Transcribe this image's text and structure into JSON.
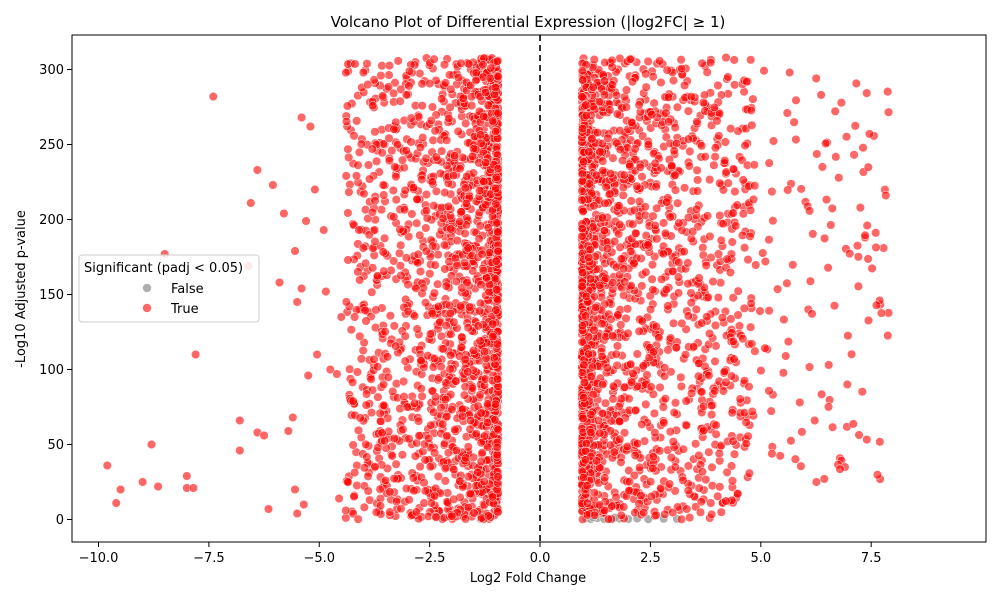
{
  "chart_data": {
    "type": "scatter",
    "title": "Volcano Plot of Differential Expression (|log2FC| ≥ 1)",
    "xlabel": "Log2 Fold Change",
    "ylabel": "-Log10 Adjusted p-value",
    "xlim": [
      -10.6,
      10.1
    ],
    "ylim": [
      -15,
      323
    ],
    "xticks": [
      -10.0,
      -7.5,
      -5.0,
      -2.5,
      0.0,
      2.5,
      5.0,
      7.5
    ],
    "xtick_labels": [
      "−10.0",
      "−7.5",
      "−5.0",
      "−2.5",
      "0.0",
      "2.5",
      "5.0",
      "7.5"
    ],
    "yticks": [
      0,
      50,
      100,
      150,
      200,
      250,
      300
    ],
    "ytick_labels": [
      "0",
      "50",
      "100",
      "150",
      "200",
      "250",
      "300"
    ],
    "vline_x": 0,
    "legend": {
      "title": "Significant (padj < 0.05)",
      "placement": "center-left",
      "entries": [
        {
          "label": "False",
          "color": "#a0a0a0"
        },
        {
          "label": "True",
          "color": "#ff0000"
        }
      ]
    },
    "grid": false,
    "series": [
      {
        "name": "False",
        "color": "#a0a0a0",
        "points": [
          [
            -1.35,
            0.5
          ],
          [
            1.05,
            0.8
          ],
          [
            1.15,
            0.3
          ],
          [
            1.3,
            0.9
          ],
          [
            1.45,
            0.4
          ],
          [
            1.6,
            0.2
          ],
          [
            1.8,
            0.6
          ],
          [
            2.0,
            0.3
          ],
          [
            2.2,
            0.7
          ],
          [
            2.45,
            0.2
          ],
          [
            2.8,
            0.5
          ],
          [
            3.1,
            0.4
          ],
          [
            1.2,
            1.5
          ],
          [
            1.7,
            1.2
          ]
        ]
      },
      {
        "name": "True",
        "color": "#ff0000",
        "points": [
          [
            -9.8,
            36
          ],
          [
            -9.6,
            11
          ],
          [
            -9.5,
            20
          ],
          [
            -9.0,
            25
          ],
          [
            -8.8,
            50
          ],
          [
            -8.65,
            22
          ],
          [
            -8.5,
            177
          ],
          [
            -8.0,
            21
          ],
          [
            -8.0,
            29
          ],
          [
            -7.85,
            21
          ],
          [
            -7.8,
            110
          ],
          [
            -7.4,
            282
          ],
          [
            -6.8,
            66
          ],
          [
            -6.8,
            46
          ],
          [
            -6.6,
            169
          ],
          [
            -6.55,
            211
          ],
          [
            -6.4,
            233
          ],
          [
            -6.4,
            58
          ],
          [
            -6.25,
            56
          ],
          [
            -6.15,
            7
          ],
          [
            -6.05,
            223
          ],
          [
            -5.9,
            158
          ],
          [
            -5.8,
            204
          ],
          [
            -5.7,
            59
          ],
          [
            -5.6,
            68
          ],
          [
            -5.55,
            20
          ],
          [
            -5.55,
            179
          ],
          [
            -5.5,
            145
          ],
          [
            -5.5,
            4
          ],
          [
            -5.4,
            268
          ],
          [
            -5.4,
            154
          ],
          [
            -5.35,
            10
          ],
          [
            -5.3,
            199
          ],
          [
            -5.25,
            96
          ],
          [
            -5.2,
            262
          ],
          [
            -5.1,
            220
          ],
          [
            -5.05,
            110
          ],
          [
            -4.9,
            193
          ],
          [
            -4.85,
            152
          ],
          [
            -4.75,
            100
          ],
          [
            -4.6,
            97
          ],
          [
            -4.55,
            14
          ],
          [
            -4.5,
            135
          ],
          [
            -4.4,
            6
          ],
          [
            -4.35,
            173
          ],
          [
            -4.2,
            135
          ],
          [
            -4.0,
            298
          ],
          [
            -3.9,
            290
          ],
          [
            -3.8,
            247
          ],
          [
            -3.75,
            193
          ],
          [
            -3.4,
            5
          ],
          [
            -3.5,
            26
          ],
          [
            -3.3,
            54
          ],
          [
            -3.25,
            12
          ],
          [
            -2.9,
            3
          ],
          [
            -2.8,
            5
          ]
        ],
        "clusters": [
          {
            "x_range": [
              -4.4,
              -0.95
            ],
            "y_range": [
              0,
              308
            ],
            "count": 1800,
            "density_exponent": 2.2,
            "pull": "inner"
          },
          {
            "x_range": [
              0.95,
              4.8
            ],
            "y_range": [
              0,
              308
            ],
            "count": 1800,
            "density_exponent": 2.2,
            "pull": "inner"
          },
          {
            "x_range": [
              4.8,
              7.9
            ],
            "y_range": [
              25,
              300
            ],
            "count": 130,
            "density_exponent": 1.0,
            "pull": "none"
          }
        ]
      }
    ]
  }
}
